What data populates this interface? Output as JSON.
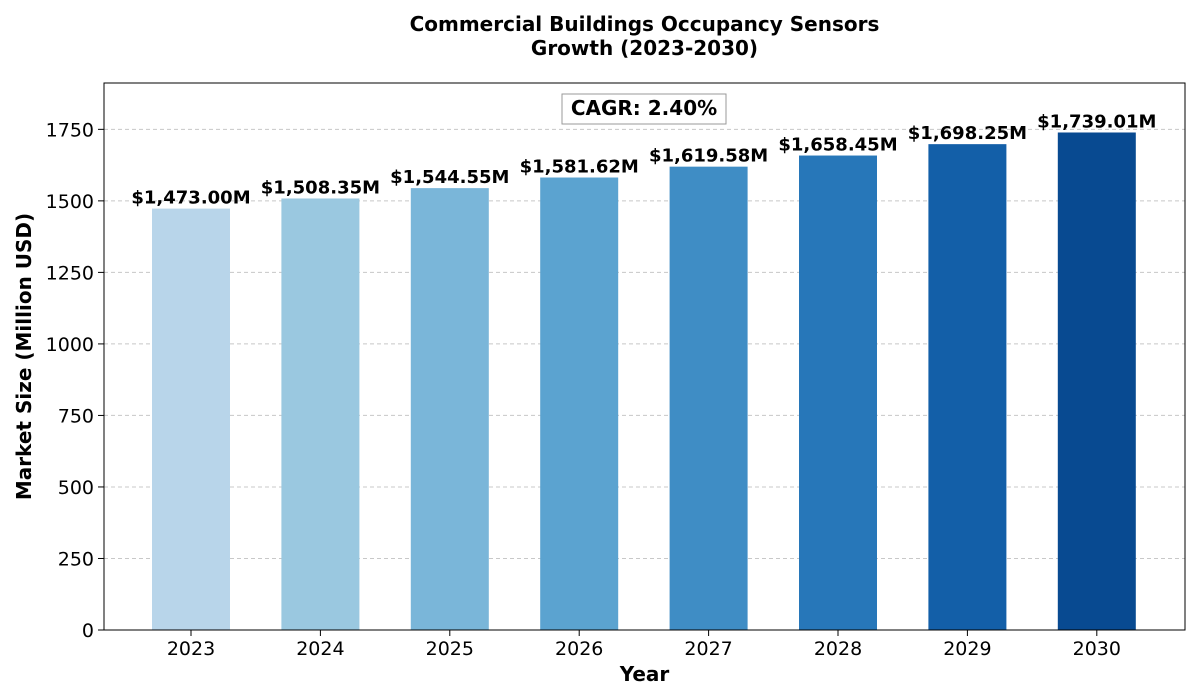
{
  "chart_data": {
    "type": "bar",
    "title_lines": [
      "Commercial Buildings Occupancy Sensors",
      "Growth (2023-2030)"
    ],
    "xlabel": "Year",
    "ylabel": "Market Size (Million USD)",
    "categories": [
      "2023",
      "2024",
      "2025",
      "2026",
      "2027",
      "2028",
      "2029",
      "2030"
    ],
    "values": [
      1473.0,
      1508.35,
      1544.55,
      1581.62,
      1619.58,
      1658.45,
      1698.25,
      1739.01
    ],
    "data_labels": [
      "$1,473.00M",
      "$1,508.35M",
      "$1,544.55M",
      "$1,581.62M",
      "$1,619.58M",
      "$1,658.45M",
      "$1,698.25M",
      "$1,739.01M"
    ],
    "bar_colors": [
      "#b8d5ea",
      "#9ac8e0",
      "#7ab6d9",
      "#5ba3d0",
      "#3f8dc5",
      "#2777b9",
      "#135fa8",
      "#084a91"
    ],
    "ylim": [
      0,
      1912
    ],
    "yticks": [
      0,
      250,
      500,
      750,
      1000,
      1250,
      1500,
      1750
    ],
    "grid": "y-dashed",
    "annotation": "CAGR: 2.40%"
  }
}
